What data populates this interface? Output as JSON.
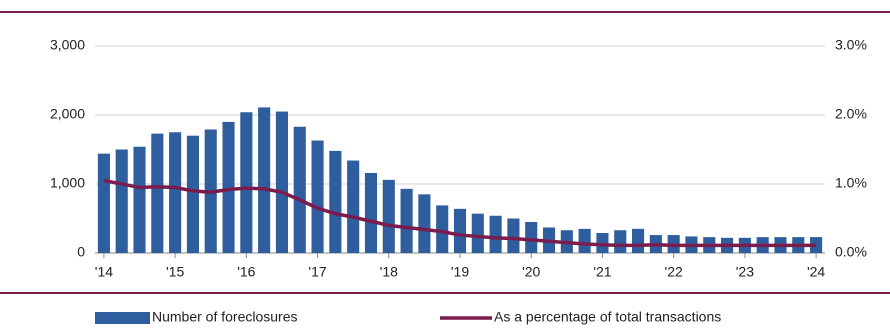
{
  "chart_data": {
    "type": "bar-line",
    "categories": [
      "'14",
      null,
      null,
      null,
      "'15",
      null,
      null,
      null,
      "'16",
      null,
      null,
      null,
      "'17",
      null,
      null,
      null,
      "'18",
      null,
      null,
      null,
      "'19",
      null,
      null,
      null,
      "'20",
      null,
      null,
      null,
      "'21",
      null,
      null,
      null,
      "'22",
      null,
      null,
      null,
      "'23",
      null,
      null,
      null,
      "'24"
    ],
    "series": [
      {
        "name": "Number of foreclosures",
        "color": "#2e5e9e",
        "axis": "y",
        "values": [
          1440,
          1500,
          1540,
          1730,
          1750,
          1700,
          1790,
          1900,
          2040,
          2110,
          2050,
          1830,
          1630,
          1480,
          1340,
          1160,
          1060,
          930,
          850,
          690,
          640,
          570,
          540,
          500,
          450,
          370,
          330,
          350,
          290,
          330,
          350,
          260,
          260,
          240,
          230,
          220,
          220,
          230,
          230,
          230,
          230
        ]
      },
      {
        "name": "As a percentage of total transactions",
        "color": "#7b1c4e",
        "axis": "y2",
        "values": [
          1.05,
          1.0,
          0.95,
          0.96,
          0.95,
          0.9,
          0.88,
          0.92,
          0.94,
          0.93,
          0.88,
          0.77,
          0.65,
          0.57,
          0.52,
          0.46,
          0.4,
          0.37,
          0.34,
          0.31,
          0.26,
          0.24,
          0.22,
          0.21,
          0.19,
          0.17,
          0.15,
          0.13,
          0.12,
          0.11,
          0.11,
          0.12,
          0.11,
          0.11,
          0.11,
          0.11,
          0.11,
          0.11,
          0.11,
          0.11,
          0.11
        ]
      }
    ],
    "ylim": [
      0,
      3000
    ],
    "yticks": [
      0,
      {
        "value": 1000,
        "label": "1,000"
      },
      {
        "value": 2000,
        "label": "2,000"
      },
      {
        "value": 3000,
        "label": "3,000"
      }
    ],
    "y2lim": [
      0,
      3
    ],
    "y2ticks": [
      {
        "value": 0,
        "label": "0.0%"
      },
      {
        "value": 1,
        "label": "1.0%"
      },
      {
        "value": 2,
        "label": "2.0%"
      },
      {
        "value": 3,
        "label": "3.0%"
      }
    ],
    "grid": true
  }
}
